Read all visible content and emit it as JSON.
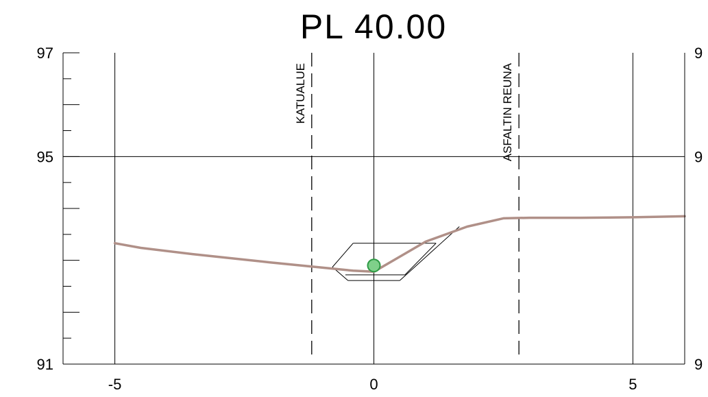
{
  "title": "PL 40.00",
  "colors": {
    "ground_line": "#b09088",
    "axis": "#000000",
    "point_fill": "#7fd08a",
    "point_stroke": "#2e9a45"
  },
  "chart_data": {
    "type": "line",
    "xlim": [
      -6,
      6
    ],
    "ylim": [
      91,
      97
    ],
    "x_ticks": [
      {
        "value": -5,
        "label": "-5"
      },
      {
        "value": 0,
        "label": "0"
      },
      {
        "value": 5,
        "label": "5"
      }
    ],
    "y_ticks_left": [
      {
        "value": 97,
        "label": "97"
      },
      {
        "value": 95,
        "label": "95"
      },
      {
        "value": 91,
        "label": "91"
      }
    ],
    "y_ticks_right": [
      {
        "value": 97,
        "label": "9"
      },
      {
        "value": 95,
        "label": "9"
      },
      {
        "value": 91,
        "label": "9"
      }
    ],
    "y_minor_step": 0.5,
    "vertical_gridlines_x": [
      -5,
      0,
      5
    ],
    "horizontal_gridlines_y": [
      95
    ],
    "markers": [
      {
        "x": -1.2,
        "label": "KATUALUE"
      },
      {
        "x": 2.8,
        "label": "ASFALTIN REUNA"
      }
    ],
    "ground_profile": {
      "x": [
        -5.0,
        -4.5,
        -3.5,
        -2.0,
        -1.0,
        -0.4,
        0.0,
        0.5,
        1.0,
        1.8,
        2.5,
        3.0,
        4.0,
        5.0,
        6.0
      ],
      "y": [
        93.33,
        93.24,
        93.12,
        92.96,
        92.86,
        92.8,
        92.78,
        93.07,
        93.36,
        93.65,
        93.81,
        93.82,
        93.82,
        93.83,
        93.85
      ]
    },
    "structure": [
      {
        "x": [
          -0.4,
          1.2
        ],
        "y": [
          93.33,
          93.33
        ]
      },
      {
        "x": [
          -0.4,
          -0.8
        ],
        "y": [
          93.33,
          92.87
        ]
      },
      {
        "x": [
          -0.8,
          -0.5
        ],
        "y": [
          92.87,
          92.61
        ]
      },
      {
        "x": [
          -0.5,
          0.5
        ],
        "y": [
          92.61,
          92.61
        ]
      },
      {
        "x": [
          0.5,
          1.65
        ],
        "y": [
          92.61,
          93.65
        ]
      },
      {
        "x": [
          -0.55,
          0.6
        ],
        "y": [
          92.72,
          92.72
        ]
      },
      {
        "x": [
          0.6,
          1.2
        ],
        "y": [
          92.72,
          93.33
        ]
      }
    ],
    "point": {
      "x": 0.0,
      "y": 92.9
    }
  }
}
